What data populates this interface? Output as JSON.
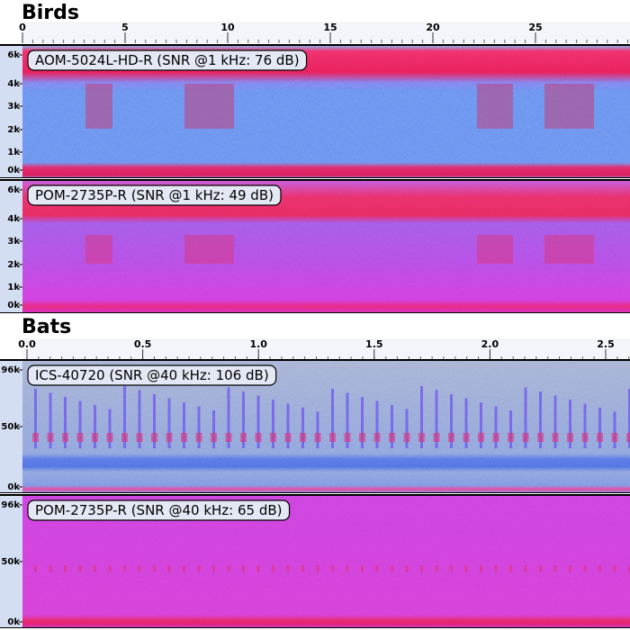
{
  "sections": [
    {
      "title": "Birds",
      "time_ticks": [
        "0",
        "5",
        "10",
        "15",
        "20",
        "25"
      ],
      "panels": [
        {
          "label": "AOM-5024L-HD-R (SNR @1 kHz: 76 dB)",
          "freq_ticks": [
            "6k",
            "4k",
            "3k",
            "2k",
            "1k",
            "0k"
          ]
        },
        {
          "label": "POM-2735P-R (SNR @1 kHz: 49 dB)",
          "freq_ticks": [
            "6k",
            "4k",
            "3k",
            "2k",
            "1k",
            "0k"
          ]
        }
      ]
    },
    {
      "title": "Bats",
      "time_ticks": [
        "0.0",
        "0.5",
        "1.0",
        "1.5",
        "2.0",
        "2.5"
      ],
      "panels": [
        {
          "label": "ICS-40720 (SNR @40 kHz: 106 dB)",
          "freq_ticks": [
            "96k",
            "50k",
            "0k"
          ]
        },
        {
          "label": "POM-2735P-R (SNR @40 kHz: 65 dB)",
          "freq_ticks": [
            "96k",
            "50k",
            "0k"
          ]
        }
      ]
    }
  ]
}
